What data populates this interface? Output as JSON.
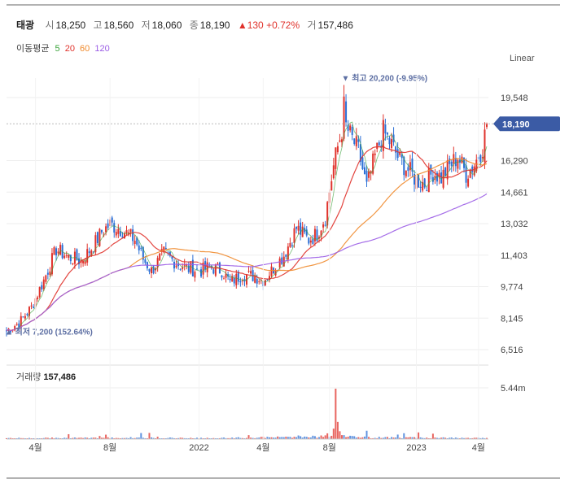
{
  "header": {
    "name": "태광",
    "open_label": "시",
    "open": "18,250",
    "high_label": "고",
    "high": "18,560",
    "low_label": "저",
    "low": "18,060",
    "close_label": "종",
    "close": "18,190",
    "change_arrow": "▲",
    "change": "130",
    "change_pct": "+0.72%",
    "volume_label": "거",
    "volume": "157,486"
  },
  "ma": {
    "label": "이동평균",
    "periods": [
      {
        "text": "5",
        "color": "#3aa33a"
      },
      {
        "text": "20",
        "color": "#e0322b"
      },
      {
        "text": "60",
        "color": "#f08a2c"
      },
      {
        "text": "120",
        "color": "#9b5de5"
      }
    ]
  },
  "scale_label": "Linear",
  "volume_panel": {
    "label": "거래량",
    "value": "157,486",
    "axis_tick": "5.44m"
  },
  "colors": {
    "up": "#e0322b",
    "down": "#2b6fd6",
    "ma5": "#3aa33a",
    "ma20": "#e0322b",
    "ma60": "#f08a2c",
    "ma120": "#9b5de5",
    "badge": "#3b5ba5",
    "annot": "#5d6fa3"
  },
  "chart_data": {
    "type": "line",
    "y_axis_ticks": [
      "19,548",
      "16,290",
      "14,661",
      "13,032",
      "11,403",
      "9,774",
      "8,145",
      "6,516"
    ],
    "y_tick_values": [
      19548,
      16290,
      14661,
      13032,
      11403,
      9774,
      8145,
      6516
    ],
    "x_axis_ticks": [
      "4월",
      "8월",
      "2022",
      "4월",
      "8월",
      "2023",
      "4월"
    ],
    "x_tick_index": [
      14,
      50,
      93,
      124,
      156,
      198,
      228
    ],
    "last_price_badge": "18,190",
    "last_price_value": 18190,
    "annotations": {
      "high": {
        "text": "최고 20,200 (-9.95%)",
        "value": 20200,
        "index": 163
      },
      "low": {
        "text": "최저 7,200 (152.64%)",
        "value": 7200,
        "index": 0
      }
    },
    "price_anchors": [
      [
        0,
        7500
      ],
      [
        6,
        7900
      ],
      [
        12,
        8700
      ],
      [
        18,
        10100
      ],
      [
        24,
        11700
      ],
      [
        30,
        11300
      ],
      [
        36,
        11100
      ],
      [
        42,
        11900
      ],
      [
        46,
        12600
      ],
      [
        50,
        13000
      ],
      [
        56,
        12700
      ],
      [
        62,
        12200
      ],
      [
        66,
        11200
      ],
      [
        70,
        10600
      ],
      [
        76,
        11500
      ],
      [
        82,
        11000
      ],
      [
        88,
        10700
      ],
      [
        94,
        10600
      ],
      [
        98,
        10800
      ],
      [
        104,
        10600
      ],
      [
        108,
        10000
      ],
      [
        114,
        10400
      ],
      [
        120,
        10300
      ],
      [
        124,
        10100
      ],
      [
        128,
        10600
      ],
      [
        134,
        11400
      ],
      [
        140,
        12800
      ],
      [
        146,
        12200
      ],
      [
        150,
        12500
      ],
      [
        154,
        13400
      ],
      [
        158,
        16000
      ],
      [
        160,
        17000
      ],
      [
        163,
        18300
      ],
      [
        166,
        17600
      ],
      [
        170,
        16800
      ],
      [
        174,
        14900
      ],
      [
        178,
        16500
      ],
      [
        182,
        17800
      ],
      [
        186,
        17100
      ],
      [
        190,
        16300
      ],
      [
        194,
        15800
      ],
      [
        198,
        15300
      ],
      [
        202,
        15100
      ],
      [
        206,
        15700
      ],
      [
        210,
        15400
      ],
      [
        214,
        16000
      ],
      [
        218,
        16500
      ],
      [
        222,
        15600
      ],
      [
        226,
        16100
      ],
      [
        230,
        17000
      ],
      [
        232,
        18190
      ]
    ],
    "volume_anchors": [
      [
        0,
        0.02
      ],
      [
        60,
        0.03
      ],
      [
        100,
        0.02
      ],
      [
        156,
        0.06
      ],
      [
        158,
        0.22
      ],
      [
        159,
        1.0
      ],
      [
        160,
        0.28
      ],
      [
        162,
        0.08
      ],
      [
        170,
        0.04
      ],
      [
        232,
        0.02
      ]
    ]
  }
}
